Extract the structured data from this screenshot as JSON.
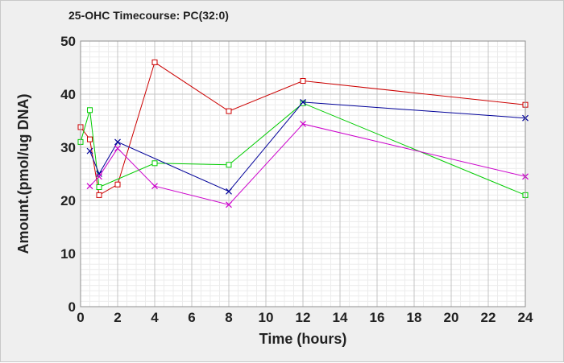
{
  "chart_data": {
    "type": "line",
    "title": "25-OHC Timecourse: PC(32:0)",
    "xlabel": "Time (hours)",
    "ylabel": "Amount.(pmol/ug DNA)",
    "xlim": [
      0,
      24
    ],
    "ylim": [
      0,
      50
    ],
    "xticks": [
      0,
      2,
      4,
      6,
      8,
      10,
      12,
      14,
      16,
      18,
      20,
      22,
      24
    ],
    "yticks": [
      0,
      10,
      20,
      30,
      40,
      50
    ],
    "xminor": 0.5,
    "yminor": 1,
    "grid": true,
    "legend": "none",
    "series": [
      {
        "name": "red",
        "color": "#cc0000",
        "marker": "square",
        "x": [
          0,
          0.5,
          1,
          2,
          4,
          8,
          12,
          24
        ],
        "y": [
          33.8,
          31.5,
          21.0,
          23.0,
          46.0,
          36.8,
          42.5,
          38.0
        ]
      },
      {
        "name": "green",
        "color": "#00cc00",
        "marker": "square",
        "x": [
          0,
          0.5,
          1,
          4,
          8,
          12,
          24
        ],
        "y": [
          31.0,
          37.0,
          22.5,
          27.0,
          26.7,
          38.3,
          21.0
        ]
      },
      {
        "name": "blue",
        "color": "#000099",
        "marker": "x",
        "x": [
          0.5,
          1,
          2,
          8,
          12,
          24
        ],
        "y": [
          29.3,
          25.0,
          31.0,
          21.7,
          38.5,
          35.5
        ]
      },
      {
        "name": "magenta",
        "color": "#cc00cc",
        "marker": "x",
        "x": [
          0.5,
          1,
          2,
          4,
          8,
          12,
          24
        ],
        "y": [
          22.7,
          24.5,
          29.8,
          22.7,
          19.2,
          34.4,
          24.5
        ]
      }
    ]
  }
}
